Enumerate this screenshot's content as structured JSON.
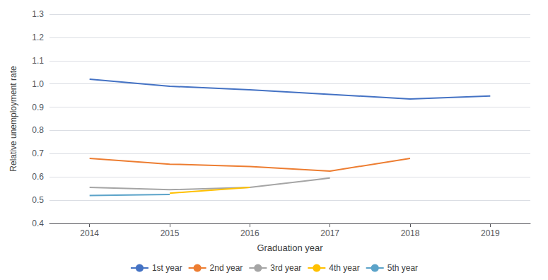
{
  "chart_data": {
    "type": "line",
    "x": [
      2014,
      2015,
      2016,
      2017,
      2018,
      2019
    ],
    "series": [
      {
        "name": "1st year",
        "color": "#4472C4",
        "values": [
          1.02,
          0.99,
          0.975,
          0.955,
          0.935,
          0.948
        ]
      },
      {
        "name": "2nd year",
        "color": "#ED7D31",
        "values": [
          0.68,
          0.655,
          0.645,
          0.625,
          0.68,
          null
        ]
      },
      {
        "name": "3rd year",
        "color": "#A5A5A5",
        "values": [
          0.555,
          0.545,
          0.555,
          0.595,
          null,
          null
        ]
      },
      {
        "name": "4th year",
        "color": "#FFC000",
        "values": [
          null,
          0.53,
          0.555,
          null,
          null,
          null
        ]
      },
      {
        "name": "5th year",
        "color": "#5BA3C9",
        "values": [
          0.52,
          0.525,
          null,
          null,
          null,
          null
        ]
      }
    ],
    "xlabel": "Graduation year",
    "ylabel": "Relative unemployment rate",
    "xlim": [
      2013.5,
      2019.5
    ],
    "xticks": [
      2014,
      2015,
      2016,
      2017,
      2018,
      2019
    ],
    "ylim": [
      0.4,
      1.3
    ],
    "yticks": [
      0.4,
      0.5,
      0.6,
      0.7,
      0.8,
      0.9,
      {
        "value": 1.0,
        "label": "1.0"
      },
      1.1,
      1.2,
      1.3
    ],
    "grid": "y",
    "legend": "bottom"
  }
}
